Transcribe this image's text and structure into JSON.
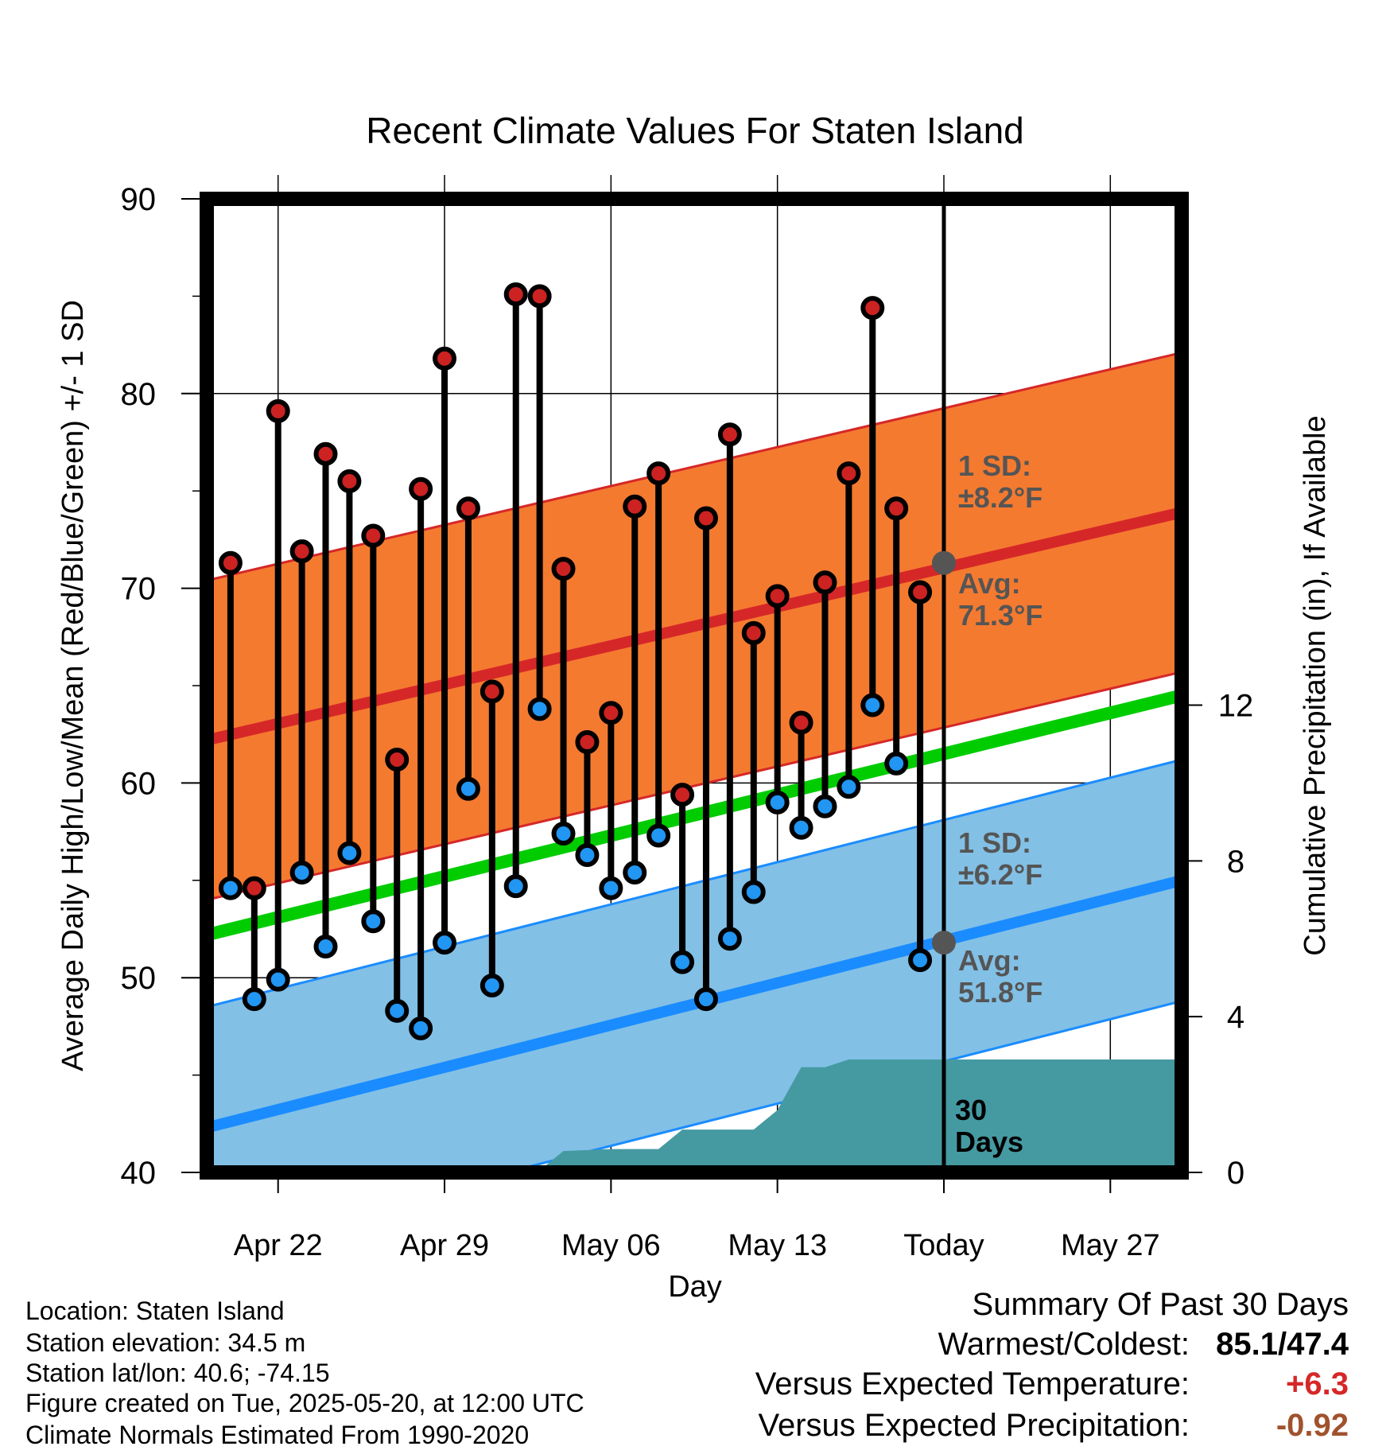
{
  "chart_data": {
    "type": "line",
    "title": "Recent Climate Values For Staten Island",
    "xlabel": "Day",
    "ylabel": "Average Daily High/Low/Mean (Red/Blue/Green) +/- 1 SD",
    "y2label": "Cumulative Precipitation (in), If Available",
    "ylim": [
      40,
      90
    ],
    "y2lim": [
      0,
      25
    ],
    "yticks": [
      40,
      50,
      60,
      70,
      80,
      90
    ],
    "y2ticks": [
      0,
      4,
      8,
      12
    ],
    "xlim": [
      "2025-04-19",
      "2025-05-30"
    ],
    "xtick_dates": [
      "2025-04-22",
      "2025-04-29",
      "2025-05-06",
      "2025-05-13",
      "2025-05-20",
      "2025-05-27"
    ],
    "xtick_labels": [
      "Apr 22",
      "Apr 29",
      "May 06",
      "May 13",
      "Today",
      "May 27"
    ],
    "grid": true,
    "today": "2025-05-20",
    "dates": [
      "2025-04-20",
      "2025-04-21",
      "2025-04-22",
      "2025-04-23",
      "2025-04-24",
      "2025-04-25",
      "2025-04-26",
      "2025-04-27",
      "2025-04-28",
      "2025-04-29",
      "2025-04-30",
      "2025-05-01",
      "2025-05-02",
      "2025-05-03",
      "2025-05-04",
      "2025-05-05",
      "2025-05-06",
      "2025-05-07",
      "2025-05-08",
      "2025-05-09",
      "2025-05-10",
      "2025-05-11",
      "2025-05-12",
      "2025-05-13",
      "2025-05-14",
      "2025-05-15",
      "2025-05-16",
      "2025-05-17",
      "2025-05-18",
      "2025-05-19"
    ],
    "highs": [
      71.3,
      54.6,
      79.1,
      71.9,
      76.9,
      75.5,
      72.7,
      61.2,
      75.1,
      81.8,
      74.1,
      64.7,
      85.1,
      85.0,
      71.0,
      62.1,
      63.6,
      74.2,
      75.9,
      59.4,
      73.6,
      77.9,
      67.7,
      69.6,
      63.1,
      70.3,
      75.9,
      84.4,
      74.1,
      69.8
    ],
    "lows": [
      54.6,
      48.9,
      49.9,
      55.4,
      51.6,
      56.4,
      52.9,
      48.3,
      47.4,
      51.8,
      59.7,
      49.6,
      54.7,
      63.8,
      57.4,
      56.3,
      54.6,
      55.4,
      57.3,
      50.8,
      48.9,
      52.0,
      54.4,
      59.0,
      57.7,
      58.8,
      59.8,
      64.0,
      61.0,
      50.9
    ],
    "normals": {
      "start_date": "2025-04-19",
      "end_date": "2025-05-30",
      "high_avg": [
        62.2,
        73.9
      ],
      "low_avg": [
        42.3,
        55.0
      ],
      "mean_avg": [
        52.2,
        64.5
      ],
      "high_sd": 8.2,
      "low_sd": 6.2
    },
    "precip": {
      "dates": [
        "2025-04-19",
        "2025-05-02",
        "2025-05-03",
        "2025-05-04",
        "2025-05-06",
        "2025-05-07",
        "2025-05-08",
        "2025-05-09",
        "2025-05-10",
        "2025-05-11",
        "2025-05-12",
        "2025-05-13",
        "2025-05-14",
        "2025-05-15",
        "2025-05-16",
        "2025-05-17",
        "2025-05-30"
      ],
      "values": [
        0,
        0,
        0.05,
        0.55,
        0.6,
        0.6,
        0.6,
        1.1,
        1.1,
        1.1,
        1.1,
        1.6,
        2.7,
        2.7,
        2.9,
        2.9,
        2.9
      ]
    },
    "today_high_avg": 71.3,
    "today_low_avg": 51.8,
    "annotations": {
      "high_sd": [
        "1 SD:",
        "±8.2°F"
      ],
      "high_avg": [
        "Avg:",
        "71.3°F"
      ],
      "low_sd": [
        "1 SD:",
        "±6.2°F"
      ],
      "low_avg": [
        "Avg:",
        "51.8°F"
      ],
      "window": [
        "30",
        "Days"
      ]
    },
    "colors": {
      "high_band": "#f47a30",
      "high_line": "#d62728",
      "low_band": "#82c0e6",
      "low_line": "#1a8cff",
      "mean_line": "#00cc00",
      "precip_fill": "#459aa2",
      "high_marker": "#cc2222",
      "low_marker": "#2196f3",
      "annotation_text": "#555555"
    }
  },
  "footer": {
    "location": "Location: Staten Island",
    "elevation": "Station elevation: 34.5 m",
    "latlon": "Station lat/lon: 40.6; -74.15",
    "created": "Figure created on Tue, 2025-05-20, at 12:00 UTC",
    "normals": "Climate Normals Estimated From 1990-2020"
  },
  "summary": {
    "title": "Summary Of Past 30 Days",
    "warmest_label": "Warmest/Coldest:",
    "warmest_value": "85.1/47.4",
    "temp_label": "Versus Expected Temperature:",
    "temp_value": "+6.3",
    "temp_color": "#d62728",
    "precip_label": "Versus Expected Precipitation:",
    "precip_value": "-0.92",
    "precip_color": "#a0522d"
  }
}
